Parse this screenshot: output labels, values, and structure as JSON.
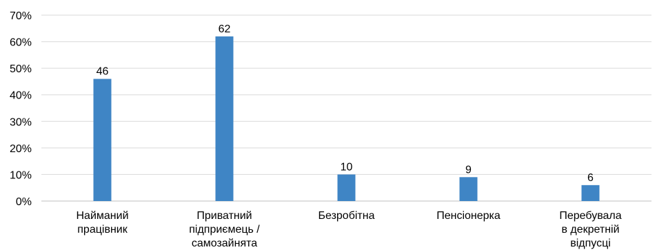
{
  "chart_data": {
    "type": "bar",
    "title": "",
    "xlabel": "",
    "ylabel": "",
    "categories": [
      [
        "Найманий",
        "працівник"
      ],
      [
        "Приватний",
        "підприємець /",
        "самозайнята"
      ],
      [
        "Безробітна"
      ],
      [
        "Пенсіонерка"
      ],
      [
        "Перебувала",
        "в декретній",
        "відпусці"
      ]
    ],
    "values": [
      46,
      62,
      10,
      9,
      6
    ],
    "data_labels": [
      "46",
      "62",
      "10",
      "9",
      "6"
    ],
    "ylim": [
      0,
      70
    ],
    "yticks": [
      0,
      10,
      20,
      30,
      40,
      50,
      60,
      70
    ],
    "ytick_labels": [
      "0%",
      "10%",
      "20%",
      "30%",
      "40%",
      "50%",
      "60%",
      "70%"
    ],
    "grid": true,
    "legend": "none",
    "bar_color": "#3f85c5"
  }
}
